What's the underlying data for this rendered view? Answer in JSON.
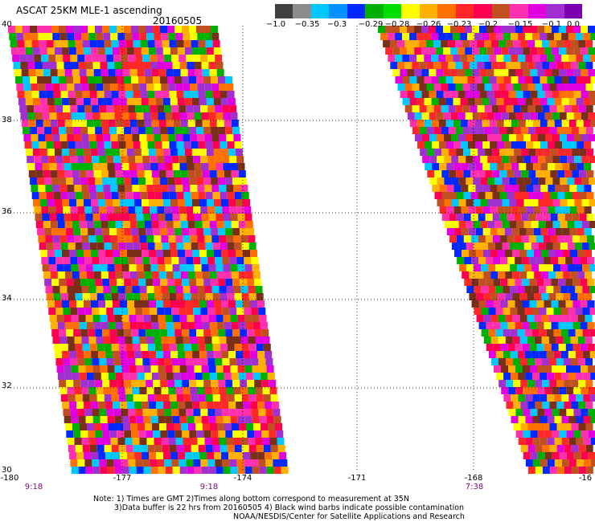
{
  "header": {
    "title": "ASCAT 25KM MLE-1 ascending",
    "date": "20160505"
  },
  "colorbar": {
    "colors": [
      "#404040",
      "#8c8c8c",
      "#00c8ff",
      "#0090ff",
      "#0028ff",
      "#00b000",
      "#00e000",
      "#ffff00",
      "#ffb000",
      "#ff7000",
      "#ff2828",
      "#ff0050",
      "#c05020",
      "#ff30b0",
      "#e000e0",
      "#a030d0",
      "#7a00b0"
    ],
    "labels": [
      "−1.0",
      "−0.35",
      "−0.3",
      "−0.29",
      "−0.28",
      "−0.26",
      "−0.23",
      "−0.2",
      "−0.15",
      "−0.1",
      "0.0"
    ]
  },
  "axes": {
    "lat_labels": [
      "40",
      "38",
      "36",
      "34",
      "32",
      "30"
    ],
    "lon_labels": [
      "-180",
      "-177",
      "-174",
      "-171",
      "-168",
      "-16"
    ],
    "time_labels": [
      "9:18",
      "9:18",
      "7:38"
    ]
  },
  "map": {
    "palette": [
      "#ff0050",
      "#ff2828",
      "#ff7000",
      "#ffb000",
      "#ffff00",
      "#00b000",
      "#0028ff",
      "#00c8ff",
      "#ff30b0",
      "#e000e0",
      "#a030d0",
      "#c05020",
      "#7a3018"
    ]
  },
  "footer": {
    "note1": "Note: 1) Times are GMT 2)Times along bottom correspond to measurement at 35N",
    "note2": "3)Data buffer is 22 hrs from 20160505 4) Black wind barbs indicate possible contamination",
    "note3": "NOAA/NESDIS/Center for Satellite Applications and Research"
  }
}
